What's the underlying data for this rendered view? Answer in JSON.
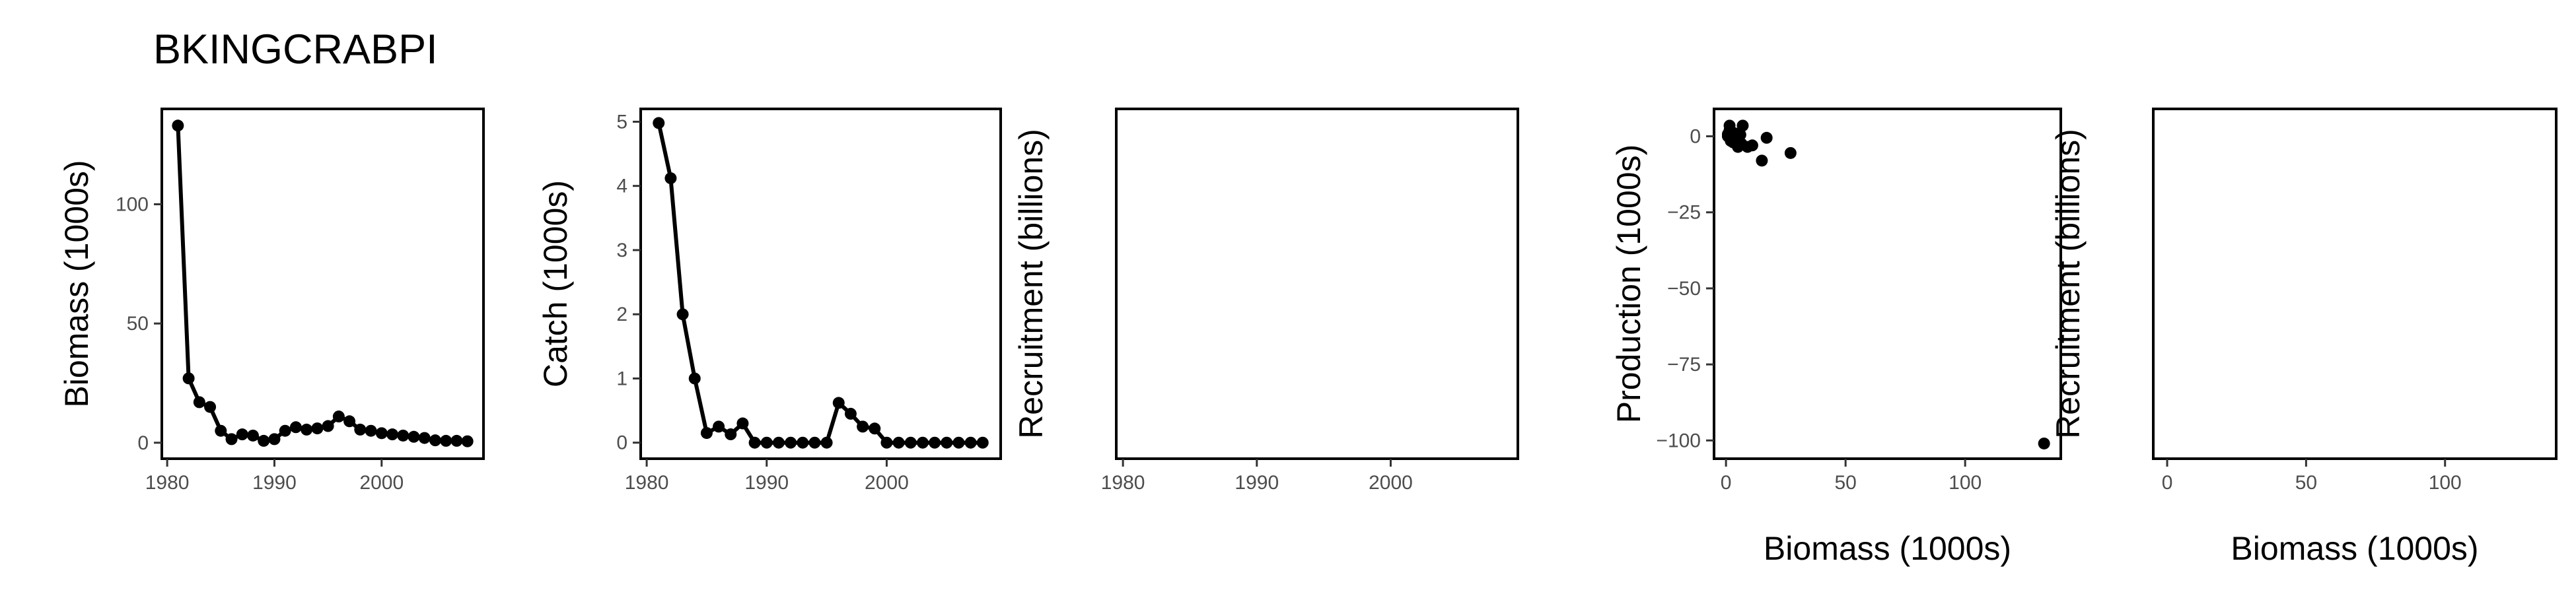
{
  "title": "BKINGCRABPI",
  "chart_data": [
    {
      "type": "line",
      "xlabel": "",
      "ylabel": "Biomass (1000s)",
      "xlim": [
        1979.5,
        2009.5
      ],
      "ylim": [
        -6.7,
        140
      ],
      "xticks": [
        1980,
        1990,
        2000
      ],
      "yticks": [
        0,
        50,
        100
      ],
      "x": [
        1981,
        1982,
        1983,
        1984,
        1985,
        1986,
        1987,
        1988,
        1989,
        1990,
        1991,
        1992,
        1993,
        1994,
        1995,
        1996,
        1997,
        1998,
        1999,
        2000,
        2001,
        2002,
        2003,
        2004,
        2005,
        2006,
        2007,
        2008
      ],
      "y": [
        133,
        27,
        17,
        15,
        5,
        1.5,
        3.5,
        3,
        0.8,
        1.5,
        5,
        6.5,
        5.5,
        6,
        7,
        11,
        9,
        5.5,
        5,
        4,
        3.5,
        3,
        2.5,
        2,
        1,
        0.8,
        0.8,
        0.6
      ]
    },
    {
      "type": "line",
      "xlabel": "",
      "ylabel": "Catch (1000s)",
      "xlim": [
        1979.5,
        2009.5
      ],
      "ylim": [
        -0.25,
        5.2
      ],
      "xticks": [
        1980,
        1990,
        2000
      ],
      "yticks": [
        0,
        1,
        2,
        3,
        4,
        5
      ],
      "x": [
        1981,
        1982,
        1983,
        1984,
        1985,
        1986,
        1987,
        1988,
        1989,
        1990,
        1991,
        1992,
        1993,
        1994,
        1995,
        1996,
        1997,
        1998,
        1999,
        2000,
        2001,
        2002,
        2003,
        2004,
        2005,
        2006,
        2007,
        2008
      ],
      "y": [
        4.98,
        4.12,
        2.0,
        1.0,
        0.15,
        0.25,
        0.13,
        0.3,
        0.0,
        0.0,
        0.0,
        0.0,
        0.0,
        0.0,
        0.0,
        0.62,
        0.45,
        0.25,
        0.22,
        0.0,
        0.0,
        0.0,
        0.0,
        0.0,
        0.0,
        0.0,
        0.0,
        0.0
      ]
    },
    {
      "type": "line",
      "xlabel": "",
      "ylabel": "Recruitment (billions)",
      "xlim": [
        1979.5,
        2009.5
      ],
      "xticks": [
        1980,
        1990,
        2000
      ],
      "yticks": [],
      "x": [],
      "y": []
    },
    {
      "type": "scatter",
      "xlabel": "Biomass (1000s)",
      "ylabel": "Production (1000s)",
      "xlim": [
        -5,
        140
      ],
      "ylim": [
        -106,
        9
      ],
      "xticks": [
        0,
        50,
        100
      ],
      "yticks": [
        0,
        -25,
        -50,
        -75,
        -100
      ],
      "x": [
        133,
        27,
        17,
        15,
        5,
        1.5,
        3.5,
        3,
        0.8,
        1.5,
        5,
        6.5,
        5.5,
        6,
        7,
        11,
        9,
        5.5,
        5,
        4,
        3.5,
        3,
        2.5,
        2,
        1,
        0.8,
        0.8
      ],
      "y": [
        -101,
        -5.5,
        -0.5,
        -8,
        -3.5,
        2,
        -0.5,
        -2,
        0.7,
        3.5,
        -0.5,
        -2.5,
        -3,
        0.5,
        3.5,
        -3,
        -3.5,
        -1.5,
        -1,
        -2,
        1,
        -0.5,
        -1,
        -1.5,
        0.5,
        0,
        0.2
      ]
    },
    {
      "type": "scatter",
      "xlabel": "Biomass (1000s)",
      "ylabel": "Recruitment (billions)",
      "xlim": [
        -5,
        140
      ],
      "xticks": [
        0,
        50,
        100
      ],
      "yticks": [],
      "x": [],
      "y": []
    }
  ]
}
